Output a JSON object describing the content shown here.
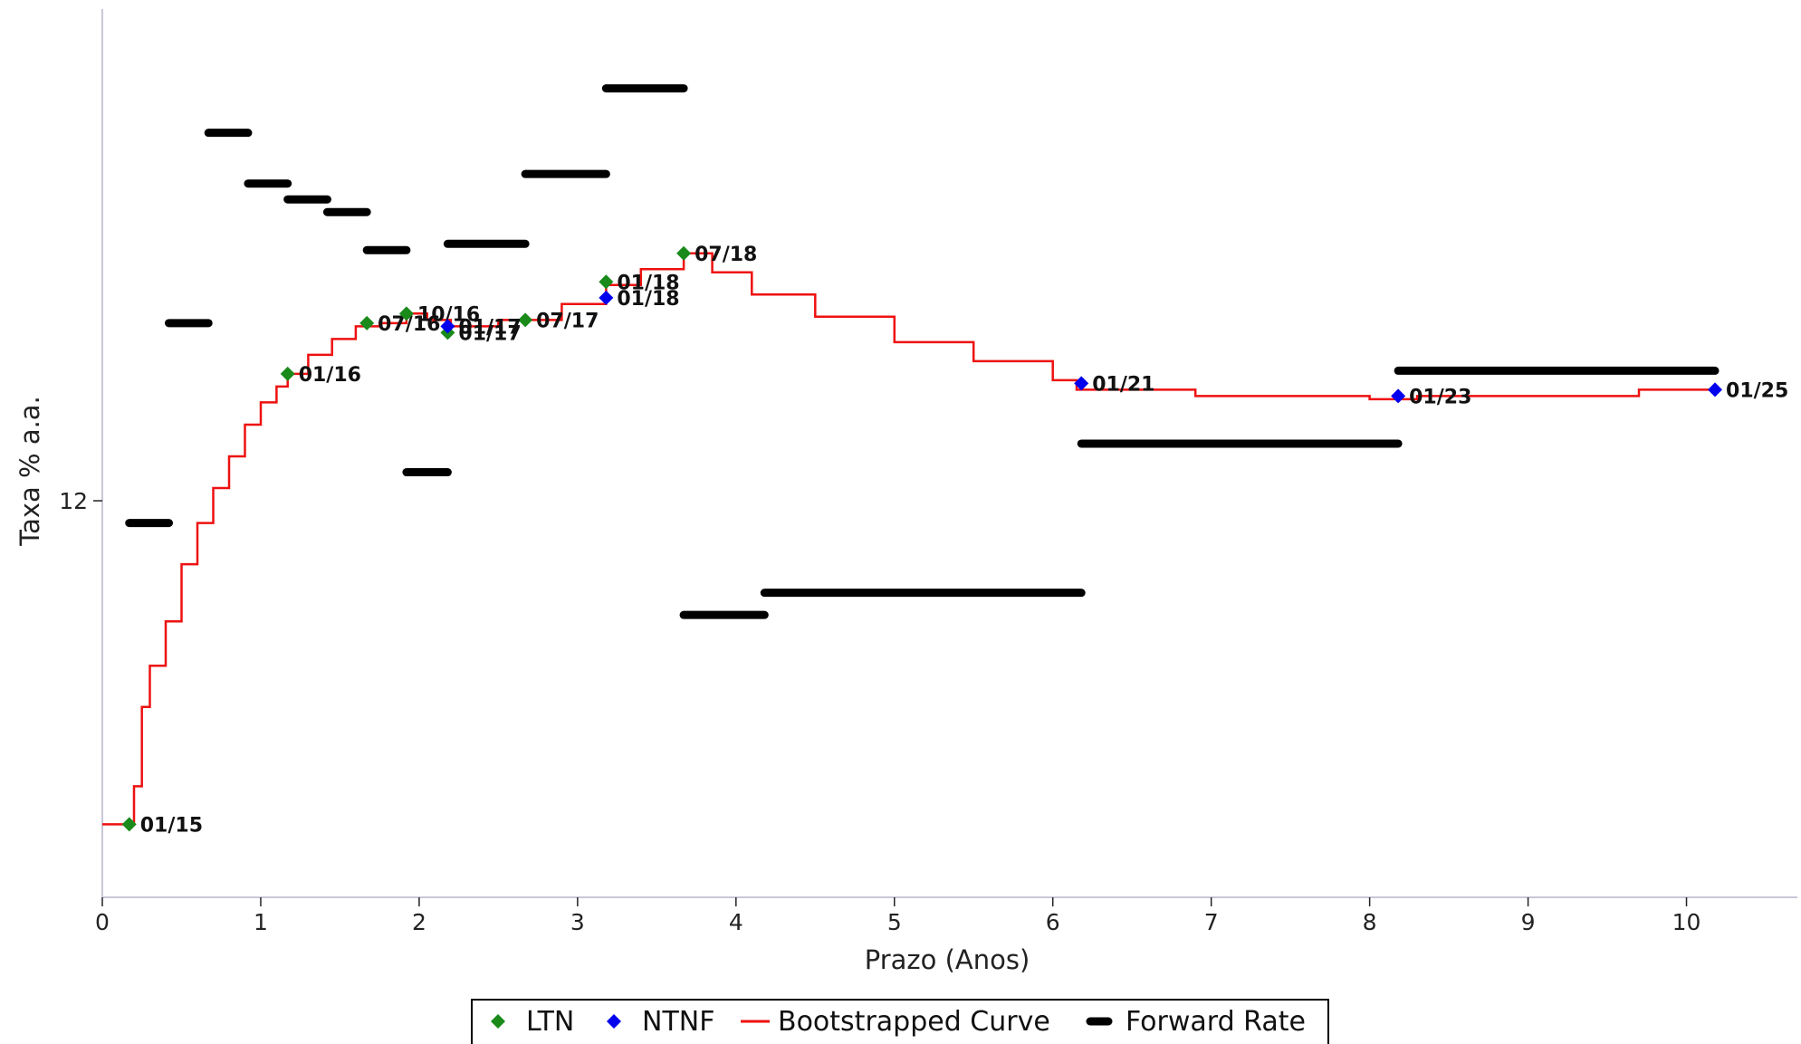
{
  "chart_data": {
    "type": "line",
    "title": "",
    "xlabel": "Prazo (Anos)",
    "ylabel": "Taxa % a.a.",
    "xlim": [
      0,
      10.7
    ],
    "xticks": [
      0,
      1,
      2,
      3,
      4,
      5,
      6,
      7,
      8,
      9,
      10
    ],
    "ylim": [
      10.75,
      13.55
    ],
    "yticks": [
      12
    ],
    "grid": false,
    "legend_position": "bottom-center",
    "colors": {
      "ltn": "#1a8a1a",
      "ntnf": "#0000ee",
      "bootstrapped": "#ee1111",
      "forward": "#000000",
      "axis": "#c8c8d8"
    },
    "legend": [
      {
        "key": "ltn",
        "label": "LTN",
        "marker": "diamond"
      },
      {
        "key": "ntnf",
        "label": "NTNF",
        "marker": "diamond"
      },
      {
        "key": "bootstrapped",
        "label": "Bootstrapped Curve",
        "marker": "line"
      },
      {
        "key": "forward",
        "label": "Forward Rate",
        "marker": "bar"
      }
    ],
    "series": [
      {
        "name": "LTN",
        "points": [
          {
            "x": 0.17,
            "y": 10.98,
            "label": "01/15"
          },
          {
            "x": 1.17,
            "y": 12.4,
            "label": "01/16"
          },
          {
            "x": 1.67,
            "y": 12.56,
            "label": "07/16"
          },
          {
            "x": 1.92,
            "y": 12.59,
            "label": "10/16"
          },
          {
            "x": 2.18,
            "y": 12.53,
            "label": "01/17"
          },
          {
            "x": 2.67,
            "y": 12.57,
            "label": "07/17"
          },
          {
            "x": 3.18,
            "y": 12.69,
            "label": "01/18"
          },
          {
            "x": 3.67,
            "y": 12.78,
            "label": "07/18"
          }
        ]
      },
      {
        "name": "NTNF",
        "points": [
          {
            "x": 2.18,
            "y": 12.55,
            "label": "01/17"
          },
          {
            "x": 3.18,
            "y": 12.64,
            "label": "01/18"
          },
          {
            "x": 6.18,
            "y": 12.37,
            "label": "01/21"
          },
          {
            "x": 8.18,
            "y": 12.33,
            "label": "01/23"
          },
          {
            "x": 10.18,
            "y": 12.35,
            "label": "01/25"
          }
        ]
      },
      {
        "name": "Bootstrapped Curve",
        "points": [
          [
            0.0,
            10.98
          ],
          [
            0.17,
            10.98
          ],
          [
            0.2,
            11.1
          ],
          [
            0.25,
            11.35
          ],
          [
            0.3,
            11.48
          ],
          [
            0.4,
            11.62
          ],
          [
            0.5,
            11.8
          ],
          [
            0.6,
            11.93
          ],
          [
            0.7,
            12.04
          ],
          [
            0.8,
            12.14
          ],
          [
            0.9,
            12.24
          ],
          [
            1.0,
            12.31
          ],
          [
            1.1,
            12.36
          ],
          [
            1.17,
            12.4
          ],
          [
            1.3,
            12.46
          ],
          [
            1.45,
            12.51
          ],
          [
            1.6,
            12.55
          ],
          [
            1.75,
            12.56
          ],
          [
            1.92,
            12.59
          ],
          [
            2.05,
            12.57
          ],
          [
            2.2,
            12.55
          ],
          [
            2.35,
            12.55
          ],
          [
            2.5,
            12.57
          ],
          [
            2.67,
            12.57
          ],
          [
            2.9,
            12.62
          ],
          [
            3.18,
            12.68
          ],
          [
            3.4,
            12.73
          ],
          [
            3.67,
            12.78
          ],
          [
            3.85,
            12.72
          ],
          [
            4.1,
            12.65
          ],
          [
            4.5,
            12.58
          ],
          [
            5.0,
            12.5
          ],
          [
            5.5,
            12.44
          ],
          [
            6.0,
            12.38
          ],
          [
            6.15,
            12.35
          ],
          [
            6.9,
            12.35
          ],
          [
            6.9,
            12.33
          ],
          [
            8.0,
            12.33
          ],
          [
            8.0,
            12.32
          ],
          [
            8.3,
            12.32
          ],
          [
            8.3,
            12.33
          ],
          [
            9.7,
            12.33
          ],
          [
            9.7,
            12.35
          ],
          [
            10.18,
            12.35
          ]
        ]
      },
      {
        "name": "Forward Rate",
        "segments": [
          {
            "x0": 0.17,
            "x1": 0.42,
            "y": 11.93
          },
          {
            "x0": 0.42,
            "x1": 0.67,
            "y": 12.56
          },
          {
            "x0": 0.67,
            "x1": 0.92,
            "y": 13.16
          },
          {
            "x0": 0.92,
            "x1": 1.17,
            "y": 13.0
          },
          {
            "x0": 1.17,
            "x1": 1.42,
            "y": 12.95
          },
          {
            "x0": 1.42,
            "x1": 1.67,
            "y": 12.91
          },
          {
            "x0": 1.67,
            "x1": 1.92,
            "y": 12.79
          },
          {
            "x0": 1.92,
            "x1": 2.18,
            "y": 12.09
          },
          {
            "x0": 2.18,
            "x1": 2.67,
            "y": 12.81
          },
          {
            "x0": 2.67,
            "x1": 3.18,
            "y": 13.03
          },
          {
            "x0": 3.18,
            "x1": 3.67,
            "y": 13.3
          },
          {
            "x0": 3.67,
            "x1": 4.18,
            "y": 11.64
          },
          {
            "x0": 4.18,
            "x1": 6.18,
            "y": 11.71
          },
          {
            "x0": 6.18,
            "x1": 8.18,
            "y": 12.18
          },
          {
            "x0": 8.18,
            "x1": 10.18,
            "y": 12.41
          }
        ]
      }
    ]
  }
}
